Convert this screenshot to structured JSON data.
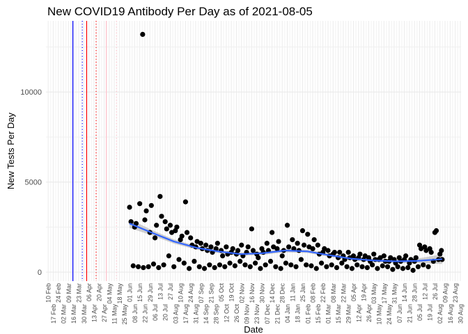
{
  "chart_data": {
    "type": "scatter",
    "title": "New COVID19 Antibody Per Day as of 2021-08-05",
    "xlabel": "Date",
    "ylabel": "New Tests Per Day",
    "xlim": [
      "2020-02-07",
      "2021-08-31"
    ],
    "ylim": [
      -500,
      13950
    ],
    "y_ticks": [
      0,
      5000,
      10000
    ],
    "y_minor_grid": [
      2500,
      7500,
      12500
    ],
    "grid": true,
    "x_ticks": [
      "2020-02-10",
      "2020-02-17",
      "2020-02-24",
      "2020-03-02",
      "2020-03-09",
      "2020-03-16",
      "2020-03-23",
      "2020-03-30",
      "2020-04-06",
      "2020-04-13",
      "2020-04-20",
      "2020-04-27",
      "2020-05-04",
      "2020-05-11",
      "2020-05-18",
      "2020-05-25",
      "2020-06-01",
      "2020-06-08",
      "2020-06-15",
      "2020-06-22",
      "2020-06-29",
      "2020-07-06",
      "2020-07-13",
      "2020-07-20",
      "2020-07-27",
      "2020-08-03",
      "2020-08-10",
      "2020-08-17",
      "2020-08-24",
      "2020-08-31",
      "2020-09-07",
      "2020-09-14",
      "2020-09-21",
      "2020-09-28",
      "2020-10-05",
      "2020-10-12",
      "2020-10-19",
      "2020-10-26",
      "2020-11-02",
      "2020-11-09",
      "2020-11-16",
      "2020-11-23",
      "2020-11-30",
      "2020-12-07",
      "2020-12-14",
      "2020-12-21",
      "2020-12-28",
      "2021-01-04",
      "2021-01-11",
      "2021-01-18",
      "2021-01-25",
      "2021-02-01",
      "2021-02-08",
      "2021-02-15",
      "2021-02-22",
      "2021-03-01",
      "2021-03-08",
      "2021-03-15",
      "2021-03-22",
      "2021-03-29",
      "2021-04-05",
      "2021-04-12",
      "2021-04-19",
      "2021-04-26",
      "2021-05-03",
      "2021-05-10",
      "2021-05-17",
      "2021-05-24",
      "2021-05-31",
      "2021-06-07",
      "2021-06-14",
      "2021-06-21",
      "2021-06-28",
      "2021-07-05",
      "2021-07-12",
      "2021-07-19",
      "2021-07-26",
      "2021-08-02",
      "2021-08-09",
      "2021-08-16",
      "2021-08-23",
      "2021-08-30"
    ],
    "vertical_lines": [
      {
        "date": "2020-03-15",
        "color": "#0000FF",
        "style": "solid"
      },
      {
        "date": "2020-03-28",
        "color": "#0000FF",
        "style": "dotted"
      },
      {
        "date": "2020-04-03",
        "color": "#FF0000",
        "style": "solid"
      },
      {
        "date": "2020-04-16",
        "color": "#FF0000",
        "style": "dotted"
      },
      {
        "date": "2020-04-30",
        "color": "#FFC0CB",
        "style": "solid"
      },
      {
        "date": "2020-05-14",
        "color": "#FFC0CB",
        "style": "dotted"
      }
    ],
    "point_color": "#000000",
    "smooth_color": "#3366FF",
    "points": [
      [
        "2020-06-01",
        3600
      ],
      [
        "2020-06-03",
        2800
      ],
      [
        "2020-06-06",
        350
      ],
      [
        "2020-06-08",
        2500
      ],
      [
        "2020-06-10",
        2700
      ],
      [
        "2020-06-13",
        300
      ],
      [
        "2020-06-15",
        3800
      ],
      [
        "2020-06-19",
        13200
      ],
      [
        "2020-06-20",
        250
      ],
      [
        "2020-06-22",
        2900
      ],
      [
        "2020-06-24",
        3400
      ],
      [
        "2020-06-27",
        300
      ],
      [
        "2020-06-29",
        2200
      ],
      [
        "2020-07-01",
        3700
      ],
      [
        "2020-07-04",
        450
      ],
      [
        "2020-07-06",
        1900
      ],
      [
        "2020-07-08",
        2600
      ],
      [
        "2020-07-11",
        250
      ],
      [
        "2020-07-13",
        4200
      ],
      [
        "2020-07-15",
        3100
      ],
      [
        "2020-07-18",
        400
      ],
      [
        "2020-07-20",
        2800
      ],
      [
        "2020-07-22",
        2400
      ],
      [
        "2020-07-25",
        900
      ],
      [
        "2020-07-27",
        2600
      ],
      [
        "2020-07-29",
        2200
      ],
      [
        "2020-08-01",
        300
      ],
      [
        "2020-08-03",
        2300
      ],
      [
        "2020-08-05",
        2500
      ],
      [
        "2020-08-08",
        700
      ],
      [
        "2020-08-10",
        1800
      ],
      [
        "2020-08-12",
        2000
      ],
      [
        "2020-08-15",
        500
      ],
      [
        "2020-08-17",
        3900
      ],
      [
        "2020-08-19",
        2200
      ],
      [
        "2020-08-22",
        200
      ],
      [
        "2020-08-24",
        1900
      ],
      [
        "2020-08-26",
        1500
      ],
      [
        "2020-08-29",
        600
      ],
      [
        "2020-08-31",
        1400
      ],
      [
        "2020-09-02",
        1700
      ],
      [
        "2020-09-05",
        300
      ],
      [
        "2020-09-07",
        1600
      ],
      [
        "2020-09-09",
        1300
      ],
      [
        "2020-09-12",
        200
      ],
      [
        "2020-09-14",
        1500
      ],
      [
        "2020-09-16",
        1200
      ],
      [
        "2020-09-19",
        400
      ],
      [
        "2020-09-21",
        1400
      ],
      [
        "2020-09-23",
        1100
      ],
      [
        "2020-09-26",
        250
      ],
      [
        "2020-09-28",
        1300
      ],
      [
        "2020-09-30",
        1600
      ],
      [
        "2020-10-03",
        400
      ],
      [
        "2020-10-05",
        1200
      ],
      [
        "2020-10-07",
        900
      ],
      [
        "2020-10-10",
        300
      ],
      [
        "2020-10-12",
        1400
      ],
      [
        "2020-10-14",
        1000
      ],
      [
        "2020-10-17",
        500
      ],
      [
        "2020-10-19",
        1100
      ],
      [
        "2020-10-21",
        1300
      ],
      [
        "2020-10-24",
        350
      ],
      [
        "2020-10-26",
        1000
      ],
      [
        "2020-10-28",
        1200
      ],
      [
        "2020-10-31",
        600
      ],
      [
        "2020-11-02",
        1500
      ],
      [
        "2020-11-04",
        900
      ],
      [
        "2020-11-07",
        400
      ],
      [
        "2020-11-09",
        1100
      ],
      [
        "2020-11-11",
        1400
      ],
      [
        "2020-11-14",
        300
      ],
      [
        "2020-11-16",
        2400
      ],
      [
        "2020-11-18",
        1200
      ],
      [
        "2020-11-21",
        500
      ],
      [
        "2020-11-23",
        1000
      ],
      [
        "2020-11-25",
        800
      ],
      [
        "2020-11-28",
        200
      ],
      [
        "2020-11-30",
        1300
      ],
      [
        "2020-12-02",
        1100
      ],
      [
        "2020-12-05",
        400
      ],
      [
        "2020-12-07",
        1600
      ],
      [
        "2020-12-09",
        1200
      ],
      [
        "2020-12-12",
        600
      ],
      [
        "2020-12-14",
        2200
      ],
      [
        "2020-12-16",
        1400
      ],
      [
        "2020-12-19",
        300
      ],
      [
        "2020-12-21",
        1300
      ],
      [
        "2020-12-23",
        1700
      ],
      [
        "2020-12-26",
        200
      ],
      [
        "2020-12-28",
        900
      ],
      [
        "2020-12-30",
        1200
      ],
      [
        "2021-01-02",
        500
      ],
      [
        "2021-01-04",
        2600
      ],
      [
        "2021-01-06",
        1400
      ],
      [
        "2021-01-09",
        400
      ],
      [
        "2021-01-11",
        1800
      ],
      [
        "2021-01-13",
        1300
      ],
      [
        "2021-01-16",
        300
      ],
      [
        "2021-01-18",
        1600
      ],
      [
        "2021-01-20",
        1200
      ],
      [
        "2021-01-23",
        700
      ],
      [
        "2021-01-25",
        2300
      ],
      [
        "2021-01-27",
        1500
      ],
      [
        "2021-01-30",
        400
      ],
      [
        "2021-02-01",
        2100
      ],
      [
        "2021-02-03",
        1400
      ],
      [
        "2021-02-06",
        350
      ],
      [
        "2021-02-08",
        1300
      ],
      [
        "2021-02-10",
        1800
      ],
      [
        "2021-02-13",
        200
      ],
      [
        "2021-02-15",
        1500
      ],
      [
        "2021-02-17",
        1000
      ],
      [
        "2021-02-20",
        500
      ],
      [
        "2021-02-22",
        1100
      ],
      [
        "2021-02-24",
        1300
      ],
      [
        "2021-02-27",
        300
      ],
      [
        "2021-03-01",
        1200
      ],
      [
        "2021-03-03",
        900
      ],
      [
        "2021-03-06",
        400
      ],
      [
        "2021-03-08",
        1000
      ],
      [
        "2021-03-10",
        1100
      ],
      [
        "2021-03-13",
        250
      ],
      [
        "2021-03-15",
        800
      ],
      [
        "2021-03-17",
        1100
      ],
      [
        "2021-03-20",
        500
      ],
      [
        "2021-03-22",
        900
      ],
      [
        "2021-03-24",
        700
      ],
      [
        "2021-03-27",
        300
      ],
      [
        "2021-03-29",
        1100
      ],
      [
        "2021-03-31",
        800
      ],
      [
        "2021-04-03",
        200
      ],
      [
        "2021-04-05",
        900
      ],
      [
        "2021-04-07",
        700
      ],
      [
        "2021-04-10",
        400
      ],
      [
        "2021-04-12",
        800
      ],
      [
        "2021-04-14",
        1000
      ],
      [
        "2021-04-17",
        300
      ],
      [
        "2021-04-19",
        700
      ],
      [
        "2021-04-21",
        900
      ],
      [
        "2021-04-24",
        250
      ],
      [
        "2021-04-26",
        800
      ],
      [
        "2021-04-28",
        600
      ],
      [
        "2021-05-01",
        400
      ],
      [
        "2021-05-03",
        1000
      ],
      [
        "2021-05-05",
        700
      ],
      [
        "2021-05-08",
        200
      ],
      [
        "2021-05-10",
        700
      ],
      [
        "2021-05-12",
        800
      ],
      [
        "2021-05-15",
        350
      ],
      [
        "2021-05-17",
        900
      ],
      [
        "2021-05-19",
        600
      ],
      [
        "2021-05-22",
        300
      ],
      [
        "2021-05-24",
        600
      ],
      [
        "2021-05-26",
        800
      ],
      [
        "2021-05-29",
        150
      ],
      [
        "2021-05-31",
        700
      ],
      [
        "2021-06-02",
        500
      ],
      [
        "2021-06-05",
        300
      ],
      [
        "2021-06-07",
        800
      ],
      [
        "2021-06-09",
        600
      ],
      [
        "2021-06-12",
        200
      ],
      [
        "2021-06-14",
        700
      ],
      [
        "2021-06-16",
        900
      ],
      [
        "2021-06-19",
        250
      ],
      [
        "2021-06-21",
        500
      ],
      [
        "2021-06-23",
        700
      ],
      [
        "2021-06-26",
        100
      ],
      [
        "2021-06-28",
        600
      ],
      [
        "2021-06-30",
        800
      ],
      [
        "2021-07-03",
        300
      ],
      [
        "2021-07-05",
        1500
      ],
      [
        "2021-07-07",
        1300
      ],
      [
        "2021-07-10",
        400
      ],
      [
        "2021-07-12",
        1400
      ],
      [
        "2021-07-14",
        1200
      ],
      [
        "2021-07-17",
        300
      ],
      [
        "2021-07-19",
        1300
      ],
      [
        "2021-07-21",
        1100
      ],
      [
        "2021-07-24",
        600
      ],
      [
        "2021-07-26",
        2200
      ],
      [
        "2021-07-28",
        2300
      ],
      [
        "2021-07-31",
        700
      ],
      [
        "2021-08-02",
        1000
      ],
      [
        "2021-08-04",
        1200
      ],
      [
        "2021-08-05",
        700
      ]
    ],
    "smooth": [
      [
        "2020-06-01",
        2700,
        2450,
        2950
      ],
      [
        "2020-07-01",
        2200,
        2050,
        2350
      ],
      [
        "2020-08-01",
        1700,
        1580,
        1820
      ],
      [
        "2020-09-01",
        1350,
        1250,
        1450
      ],
      [
        "2020-10-01",
        1150,
        1060,
        1240
      ],
      [
        "2020-11-01",
        1000,
        910,
        1090
      ],
      [
        "2020-12-01",
        1050,
        960,
        1140
      ],
      [
        "2021-01-01",
        1200,
        1100,
        1300
      ],
      [
        "2021-02-01",
        1150,
        1060,
        1240
      ],
      [
        "2021-03-01",
        950,
        860,
        1040
      ],
      [
        "2021-04-01",
        750,
        660,
        840
      ],
      [
        "2021-05-01",
        650,
        560,
        740
      ],
      [
        "2021-06-01",
        600,
        510,
        690
      ],
      [
        "2021-07-01",
        620,
        500,
        740
      ],
      [
        "2021-08-05",
        720,
        450,
        990
      ]
    ]
  }
}
